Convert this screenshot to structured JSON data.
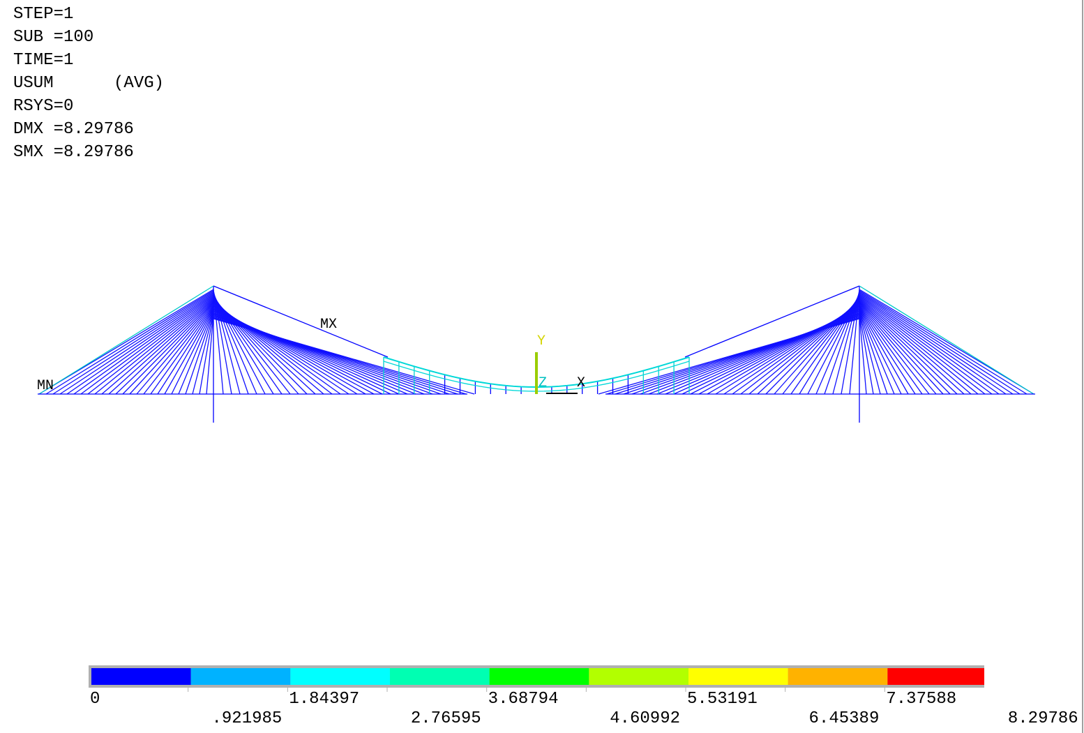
{
  "header": {
    "lines": [
      "STEP=1",
      "SUB =100",
      "TIME=1",
      "USUM      (AVG)",
      "RSYS=0",
      "DMX =8.29786",
      "SMX =8.29786"
    ]
  },
  "markers": {
    "max": "MX",
    "min": "MN"
  },
  "triad": {
    "y": "Y",
    "z": "Z",
    "x": "X"
  },
  "legend": {
    "colors": [
      "#0000ff",
      "#00b2ff",
      "#00ffff",
      "#00ffb2",
      "#00ff00",
      "#b2ff00",
      "#ffff00",
      "#ffb200",
      "#ff0000"
    ],
    "labels": [
      "0",
      ".921985",
      "1.84397",
      "2.76595",
      "3.68794",
      "4.60992",
      "5.53191",
      "6.45389",
      "7.37588",
      "8.29786"
    ]
  }
}
